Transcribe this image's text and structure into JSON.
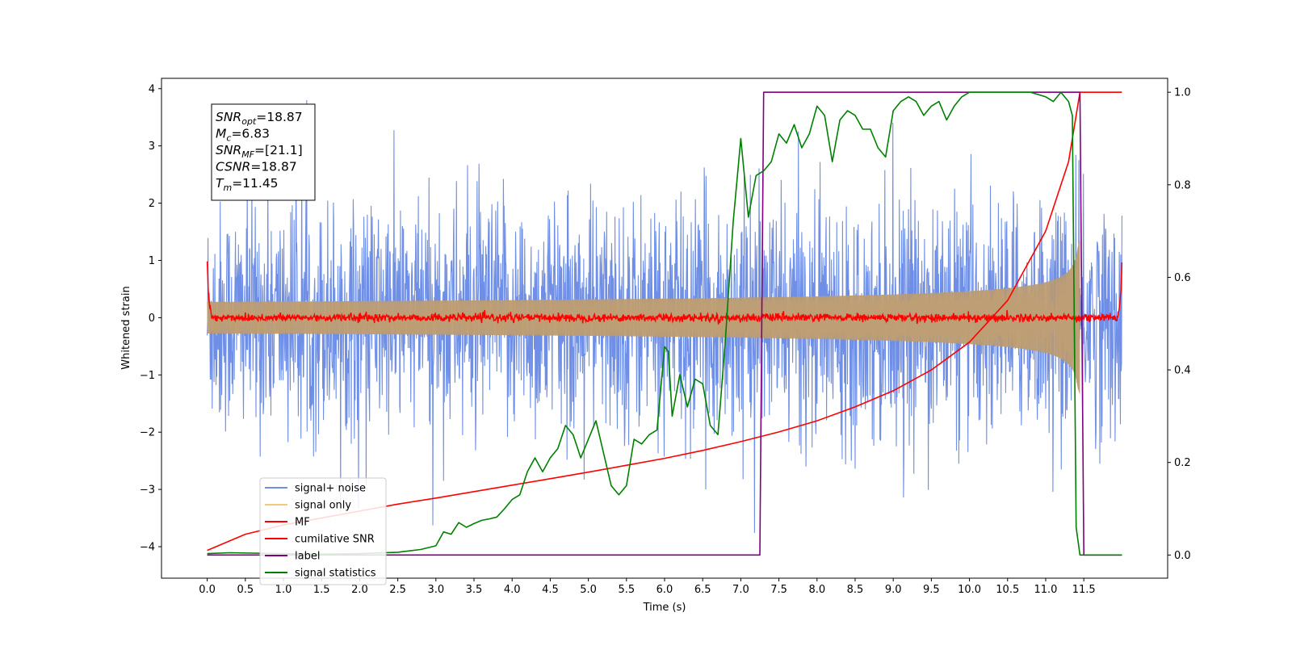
{
  "chart_data": {
    "type": "line",
    "title": "",
    "xlabel": "Time (s)",
    "ylabel": "Whitened strain",
    "y2label": "",
    "xlim": [
      -0.6,
      12.6
    ],
    "ylim": [
      -4.55,
      4.18
    ],
    "y2lim": [
      -0.05,
      1.03
    ],
    "xticks": [
      "0.0",
      "0.5",
      "1.0",
      "1.5",
      "2.0",
      "2.5",
      "3.0",
      "3.5",
      "4.0",
      "4.5",
      "5.0",
      "5.5",
      "6.0",
      "6.5",
      "7.0",
      "7.5",
      "8.0",
      "8.5",
      "9.0",
      "9.5",
      "10.0",
      "10.5",
      "11.0",
      "11.5"
    ],
    "yticks": [
      "4",
      "3",
      "2",
      "1",
      "0",
      "−1",
      "−2",
      "−3",
      "−4"
    ],
    "y2ticks": [
      "1.0",
      "0.8",
      "0.6",
      "0.4",
      "0.2",
      "0.0"
    ],
    "legend_position": "lower left",
    "grid": false,
    "series": [
      {
        "name": "signal+ noise",
        "axis": "left",
        "color": "#6f8fe6",
        "description": "Gaussian noise plus chirp, amplitude roughly ±2.5 with spikes to ±3.8, t = 0 to 12",
        "x_range": [
          0,
          12
        ],
        "envelope_sigma": 1.0
      },
      {
        "name": "signal only",
        "axis": "left",
        "color": "#f5c97a",
        "description": "chirp signal growing in amplitude and frequency until merger near t = 11.45",
        "x_range": [
          0,
          11.45
        ],
        "peak_amplitude": 1.5
      },
      {
        "name": "MF",
        "axis": "left",
        "color": "#ff0000",
        "description": "matched filter output, near zero (±0.1) with edge spikes to ~1.0 at t = 0 and t = 12",
        "x_range": [
          0,
          12
        ]
      },
      {
        "name": "cumilative SNR",
        "axis": "right",
        "color": "#ff0000",
        "x": [
          0.0,
          0.5,
          1.0,
          1.5,
          2.0,
          2.5,
          3.0,
          3.5,
          4.0,
          4.5,
          5.0,
          5.5,
          6.0,
          6.5,
          7.0,
          7.5,
          8.0,
          8.5,
          9.0,
          9.5,
          10.0,
          10.5,
          11.0,
          11.3,
          11.45,
          12.0
        ],
        "y": [
          0.01,
          0.045,
          0.065,
          0.08,
          0.095,
          0.11,
          0.123,
          0.137,
          0.151,
          0.165,
          0.179,
          0.194,
          0.209,
          0.226,
          0.245,
          0.266,
          0.29,
          0.32,
          0.355,
          0.4,
          0.46,
          0.55,
          0.7,
          0.85,
          1.0,
          1.0
        ]
      },
      {
        "name": "label",
        "axis": "right",
        "color": "#800080",
        "x": [
          0.0,
          7.25,
          7.3,
          11.45,
          11.5,
          12.0
        ],
        "y": [
          0.0,
          0.0,
          1.0,
          1.0,
          0.0,
          0.0
        ]
      },
      {
        "name": "signal statistics",
        "axis": "right",
        "color": "#008000",
        "x": [
          0.0,
          0.3,
          0.6,
          1.0,
          1.5,
          2.0,
          2.5,
          2.8,
          3.0,
          3.1,
          3.2,
          3.3,
          3.4,
          3.5,
          3.6,
          3.7,
          3.8,
          3.9,
          4.0,
          4.1,
          4.2,
          4.3,
          4.4,
          4.5,
          4.6,
          4.7,
          4.8,
          4.9,
          5.0,
          5.1,
          5.2,
          5.3,
          5.4,
          5.5,
          5.6,
          5.7,
          5.8,
          5.9,
          6.0,
          6.05,
          6.1,
          6.2,
          6.3,
          6.4,
          6.5,
          6.6,
          6.7,
          6.8,
          6.9,
          7.0,
          7.1,
          7.2,
          7.3,
          7.4,
          7.5,
          7.6,
          7.7,
          7.8,
          7.9,
          8.0,
          8.1,
          8.2,
          8.3,
          8.4,
          8.5,
          8.6,
          8.7,
          8.8,
          8.9,
          9.0,
          9.1,
          9.2,
          9.3,
          9.4,
          9.5,
          9.6,
          9.7,
          9.8,
          9.9,
          10.0,
          10.2,
          10.5,
          10.8,
          11.0,
          11.1,
          11.2,
          11.3,
          11.35,
          11.4,
          11.45,
          11.5,
          12.0
        ],
        "y": [
          0.003,
          0.005,
          0.004,
          0.003,
          0.002,
          0.003,
          0.006,
          0.012,
          0.02,
          0.05,
          0.045,
          0.07,
          0.06,
          0.068,
          0.075,
          0.078,
          0.082,
          0.1,
          0.12,
          0.13,
          0.18,
          0.21,
          0.18,
          0.21,
          0.23,
          0.28,
          0.26,
          0.21,
          0.25,
          0.29,
          0.22,
          0.15,
          0.13,
          0.15,
          0.25,
          0.24,
          0.26,
          0.27,
          0.45,
          0.44,
          0.3,
          0.39,
          0.32,
          0.38,
          0.37,
          0.28,
          0.26,
          0.47,
          0.72,
          0.9,
          0.73,
          0.82,
          0.83,
          0.85,
          0.91,
          0.89,
          0.93,
          0.88,
          0.91,
          0.97,
          0.95,
          0.85,
          0.94,
          0.96,
          0.95,
          0.92,
          0.92,
          0.88,
          0.86,
          0.96,
          0.98,
          0.99,
          0.98,
          0.95,
          0.97,
          0.98,
          0.94,
          0.97,
          0.99,
          1.0,
          1.0,
          1.0,
          1.0,
          0.99,
          0.98,
          1.0,
          0.98,
          0.95,
          0.06,
          0.0,
          0.0,
          0.0
        ]
      }
    ]
  },
  "info_box": {
    "lines": [
      {
        "main": "SNR",
        "sub": "opt",
        "value": "=18.87"
      },
      {
        "main": "M",
        "sub": "c",
        "value": "=6.83"
      },
      {
        "main": "SNR",
        "sub": "MF",
        "value": "=[21.1]"
      },
      {
        "main": "CSNR",
        "sub": "",
        "value": "=18.87"
      },
      {
        "main": "T",
        "sub": "m",
        "value": "=11.45"
      }
    ]
  }
}
